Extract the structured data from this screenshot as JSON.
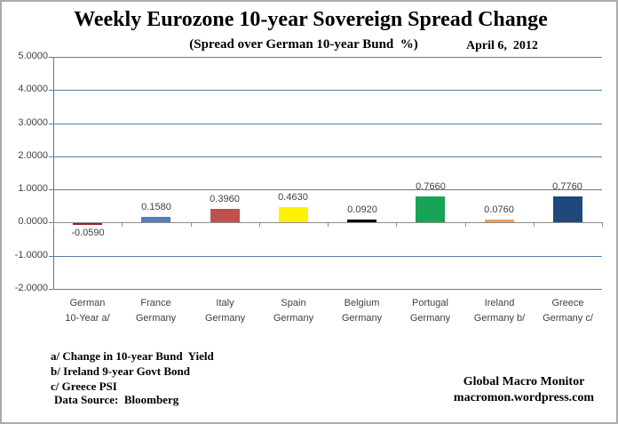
{
  "chart_data": {
    "type": "bar",
    "title": "Weekly Eurozone 10-year Sovereign Spread Change",
    "subtitle": "(Spread over German 10-year Bund  %)",
    "date_annotation": "April 6,  2012",
    "categories": [
      [
        "German",
        "10-Year a/"
      ],
      [
        "France",
        "Germany"
      ],
      [
        "Italy",
        "Germany"
      ],
      [
        "Spain",
        "Germany"
      ],
      [
        "Belgium",
        "Germany"
      ],
      [
        "Portugal",
        "Germany"
      ],
      [
        "Ireland",
        "Germany b/"
      ],
      [
        "Greece",
        "Germany c/"
      ]
    ],
    "values": [
      -0.059,
      0.158,
      0.396,
      0.463,
      0.092,
      0.766,
      0.076,
      0.776
    ],
    "value_labels": [
      "-0.0590",
      "0.1580",
      "0.3960",
      "0.4630",
      "0.0920",
      "0.7660",
      "0.0760",
      "0.7760"
    ],
    "bar_colors": [
      "#9e2124",
      "#4f81bd",
      "#c0504d",
      "#fff200",
      "#000000",
      "#17a457",
      "#eaa25c",
      "#1f497d"
    ],
    "yticks": [
      "5.0000",
      "4.0000",
      "3.0000",
      "2.0000",
      "1.0000",
      "0.0000",
      "-1.0000",
      "-2.0000"
    ],
    "ylim": [
      -2,
      5
    ],
    "ytick_step": 1,
    "grid": true,
    "legend": "none",
    "xlabel": "",
    "ylabel": "",
    "colors": {
      "gridline": "#567d9e",
      "category_axis": "#8c8c8c",
      "label_text": "#404040"
    }
  },
  "footnotes": [
    "a/ Change in 10-year Bund  Yield",
    "b/ Ireland 9-year Govt Bond",
    "c/ Greece PSI"
  ],
  "data_source": "Data Source:  Bloomberg",
  "attribution": {
    "line1": "Global Macro Monitor",
    "line2": "macromon.wordpress.com"
  }
}
